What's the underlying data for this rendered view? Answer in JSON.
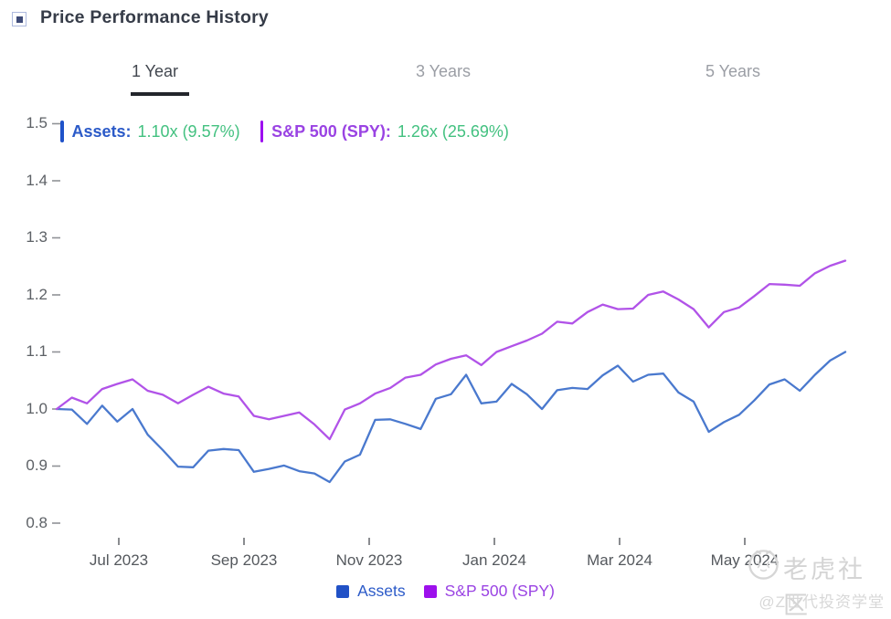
{
  "header": {
    "title": "Price Performance History"
  },
  "tabs": [
    {
      "label": "1 Year",
      "active": true
    },
    {
      "label": "3 Years",
      "active": false
    },
    {
      "label": "5 Years",
      "active": false
    }
  ],
  "readout": {
    "assets_label": "Assets:",
    "assets_value": "1.10x (9.57%)",
    "spy_label": "S&P 500 (SPY):",
    "spy_value": "1.26x (25.69%)"
  },
  "legend": [
    {
      "label": "Assets",
      "color": "#2151c6"
    },
    {
      "label": "S&P 500 (SPY)",
      "color": "#9d10ec"
    }
  ],
  "watermark": {
    "brand": "老虎社区",
    "handle": "@Z世代投资学堂"
  },
  "colors": {
    "assets_line": "#4a79ce",
    "spy_line": "#b153e8",
    "value_green": "#43c180"
  },
  "chart_data": {
    "type": "line",
    "title": "Price Performance History",
    "xlabel": "",
    "ylabel": "",
    "ylim": [
      0.8,
      1.5
    ],
    "grid": false,
    "legend_position": "bottom",
    "y_ticks": [
      1.5,
      1.4,
      1.3,
      1.2,
      1.1,
      1.0,
      0.9,
      0.8
    ],
    "x_tick_labels": [
      "Jul 2023",
      "Sep 2023",
      "Nov 2023",
      "Jan 2024",
      "Mar 2024",
      "May 2024"
    ],
    "x_range_note": "weekly points, Jun 2023 - Jun 2024",
    "series": [
      {
        "name": "Assets",
        "color": "#4a79ce",
        "final_label": "1.10x (9.57%)",
        "values": [
          1.0,
          0.999,
          0.974,
          1.006,
          0.978,
          1.0,
          0.955,
          0.928,
          0.899,
          0.898,
          0.927,
          0.93,
          0.928,
          0.89,
          0.895,
          0.901,
          0.891,
          0.887,
          0.872,
          0.908,
          0.92,
          0.981,
          0.982,
          0.974,
          0.965,
          1.018,
          1.026,
          1.06,
          1.01,
          1.013,
          1.044,
          1.026,
          1.0,
          1.033,
          1.037,
          1.035,
          1.059,
          1.076,
          1.048,
          1.06,
          1.062,
          1.029,
          1.013,
          0.96,
          0.977,
          0.99,
          1.015,
          1.043,
          1.052,
          1.032,
          1.06,
          1.085,
          1.1
        ]
      },
      {
        "name": "S&P 500 (SPY)",
        "color": "#b153e8",
        "final_label": "1.26x (25.69%)",
        "values": [
          1.0,
          1.02,
          1.01,
          1.035,
          1.044,
          1.052,
          1.032,
          1.025,
          1.01,
          1.025,
          1.039,
          1.027,
          1.022,
          0.988,
          0.982,
          0.988,
          0.994,
          0.973,
          0.947,
          0.999,
          1.01,
          1.027,
          1.037,
          1.055,
          1.06,
          1.078,
          1.088,
          1.094,
          1.077,
          1.1,
          1.11,
          1.12,
          1.132,
          1.153,
          1.15,
          1.17,
          1.183,
          1.175,
          1.176,
          1.2,
          1.206,
          1.192,
          1.175,
          1.143,
          1.17,
          1.178,
          1.198,
          1.219,
          1.218,
          1.216,
          1.238,
          1.251,
          1.26
        ]
      }
    ]
  }
}
